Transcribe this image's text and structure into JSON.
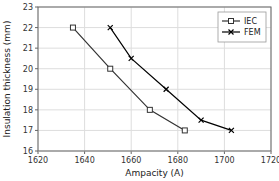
{
  "chart_data": {
    "type": "line",
    "xlabel": "Ampacity (A)",
    "ylabel": "Insulation thickness (mm)",
    "xlim": [
      1620,
      1720
    ],
    "ylim": [
      16,
      23
    ],
    "xticks": [
      1620,
      1640,
      1660,
      1680,
      1700,
      1720
    ],
    "yticks": [
      16,
      17,
      18,
      19,
      20,
      21,
      22,
      23
    ],
    "grid": true,
    "legend": "upper right",
    "series": [
      {
        "name": "IEC",
        "color": "#333333",
        "marker": "square",
        "x": [
          1635,
          1651,
          1668,
          1683
        ],
        "values": [
          22,
          20,
          18,
          17
        ]
      },
      {
        "name": "FEM",
        "color": "#000000",
        "marker": "x",
        "x": [
          1651,
          1660,
          1675,
          1690,
          1703
        ],
        "values": [
          22,
          20.5,
          19,
          17.5,
          17
        ]
      }
    ]
  }
}
